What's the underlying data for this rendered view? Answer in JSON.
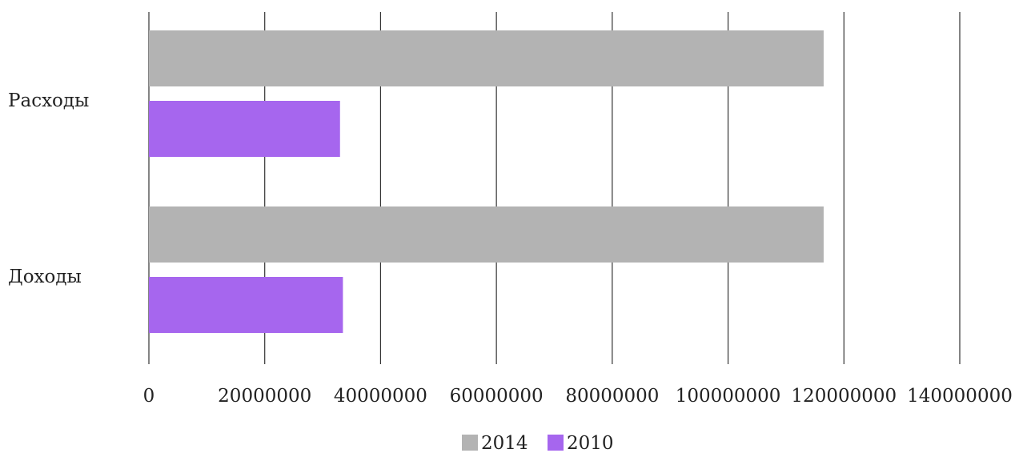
{
  "chart_data": {
    "type": "bar",
    "orientation": "horizontal",
    "categories": [
      "Расходы",
      "Доходы"
    ],
    "series": [
      {
        "name": "2014",
        "values": [
          116500000,
          116500000
        ],
        "color": "#b3b3b3"
      },
      {
        "name": "2010",
        "values": [
          33000000,
          33500000
        ],
        "color": "#a666ee"
      }
    ],
    "xlim": [
      0,
      140000000
    ],
    "x_ticks": [
      0,
      20000000,
      40000000,
      60000000,
      80000000,
      100000000,
      120000000,
      140000000
    ],
    "x_tick_labels": [
      "0",
      "20000000",
      "40000000",
      "60000000",
      "80000000",
      "100000000",
      "120000000",
      "140000000"
    ],
    "grid": true,
    "legend_position": "bottom",
    "title": "",
    "xlabel": "",
    "ylabel": ""
  }
}
